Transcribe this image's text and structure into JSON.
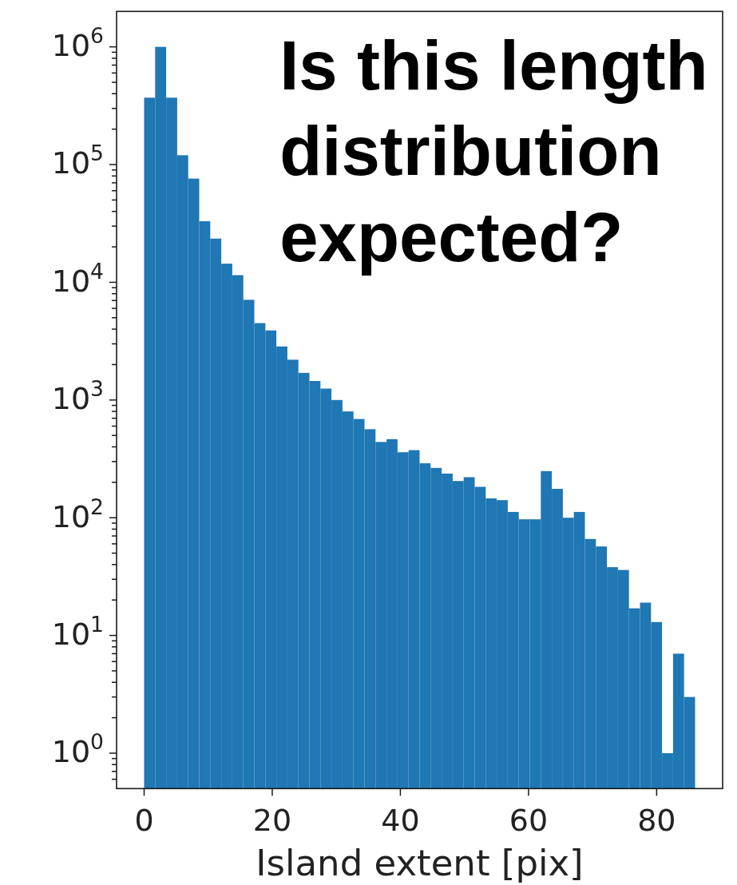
{
  "chart_data": {
    "type": "histogram",
    "annotations": [
      "Is this length distribution expected?"
    ],
    "xlabel": "Island extent [pix]",
    "bins": [
      0,
      1.72,
      3.44,
      5.16,
      6.88,
      8.6,
      10.32,
      12.04,
      13.76,
      15.48,
      17.2,
      18.92,
      20.64,
      22.36,
      24.08,
      25.8,
      27.52,
      29.24,
      30.96,
      32.68,
      34.4,
      36.12,
      37.84,
      39.56,
      41.28,
      43,
      44.72,
      46.44,
      48.16,
      49.88,
      51.6,
      53.32,
      55.04,
      56.76,
      58.48,
      60.2,
      61.92,
      63.64,
      65.36,
      67.08,
      68.8,
      70.52,
      72.24,
      73.96,
      75.68,
      77.4,
      79.12,
      80.84,
      82.56,
      84.28,
      86
    ],
    "values": [
      370000,
      1000000,
      370000,
      120000,
      76000,
      33000,
      23500,
      14400,
      11500,
      7100,
      4500,
      3900,
      2850,
      2200,
      1700,
      1450,
      1250,
      1000,
      800,
      690,
      565,
      440,
      465,
      360,
      375,
      290,
      265,
      237,
      205,
      221,
      183,
      146,
      141,
      112,
      97,
      97,
      249,
      176,
      100,
      112,
      66,
      57,
      38,
      36,
      17,
      19,
      13,
      1,
      7,
      3
    ],
    "color": "#1f77b4",
    "log": true,
    "xlim": [
      -4.3,
      90.3
    ],
    "ylim": [
      0.5,
      2000000
    ],
    "xticks": [
      0,
      20,
      40,
      60,
      80
    ],
    "yticks": [
      {
        "value": 0.6,
        "label": null
      },
      {
        "value": 0.7,
        "label": null
      },
      {
        "value": 0.8,
        "label": null
      },
      {
        "value": 0.9,
        "label": null
      },
      {
        "value": 1,
        "label": "10$^{0}$"
      },
      {
        "value": 2,
        "label": null
      },
      {
        "value": 3,
        "label": null
      },
      {
        "value": 4,
        "label": null
      },
      {
        "value": 5,
        "label": null
      },
      {
        "value": 6,
        "label": null
      },
      {
        "value": 7,
        "label": null
      },
      {
        "value": 8,
        "label": null
      },
      {
        "value": 9,
        "label": null
      },
      {
        "value": 10,
        "label": "10$^{1}$"
      },
      {
        "value": 20,
        "label": null
      },
      {
        "value": 30,
        "label": null
      },
      {
        "value": 40,
        "label": null
      },
      {
        "value": 50,
        "label": null
      },
      {
        "value": 60,
        "label": null
      },
      {
        "value": 70,
        "label": null
      },
      {
        "value": 80,
        "label": null
      },
      {
        "value": 90,
        "label": null
      },
      {
        "value": 100,
        "label": "10$^{2}$"
      },
      {
        "value": 200,
        "label": null
      },
      {
        "value": 300,
        "label": null
      },
      {
        "value": 400,
        "label": null
      },
      {
        "value": 500,
        "label": null
      },
      {
        "value": 600,
        "label": null
      },
      {
        "value": 700,
        "label": null
      },
      {
        "value": 800,
        "label": null
      },
      {
        "value": 900,
        "label": null
      },
      {
        "value": 1000,
        "label": "10$^{3}$"
      },
      {
        "value": 2000,
        "label": null
      },
      {
        "value": 3000,
        "label": null
      },
      {
        "value": 4000,
        "label": null
      },
      {
        "value": 5000,
        "label": null
      },
      {
        "value": 6000,
        "label": null
      },
      {
        "value": 7000,
        "label": null
      },
      {
        "value": 8000,
        "label": null
      },
      {
        "value": 9000,
        "label": null
      },
      {
        "value": 10000,
        "label": "10$^{4}$"
      },
      {
        "value": 20000,
        "label": null
      },
      {
        "value": 30000,
        "label": null
      },
      {
        "value": 40000,
        "label": null
      },
      {
        "value": 50000,
        "label": null
      },
      {
        "value": 60000,
        "label": null
      },
      {
        "value": 70000,
        "label": null
      },
      {
        "value": 80000,
        "label": null
      },
      {
        "value": 90000,
        "label": null
      },
      {
        "value": 100000,
        "label": "10$^{5}$"
      },
      {
        "value": 200000,
        "label": null
      },
      {
        "value": 300000,
        "label": null
      },
      {
        "value": 400000,
        "label": null
      },
      {
        "value": 500000,
        "label": null
      },
      {
        "value": 600000,
        "label": null
      },
      {
        "value": 700000,
        "label": null
      },
      {
        "value": 800000,
        "label": null
      },
      {
        "value": 900000,
        "label": null
      },
      {
        "value": 1000000,
        "label": "10$^{6}$"
      }
    ]
  }
}
